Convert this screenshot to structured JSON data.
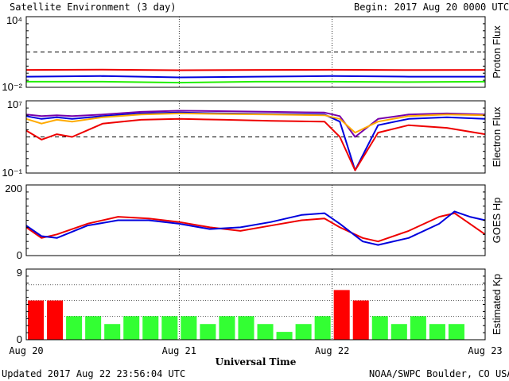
{
  "header": {
    "title": "Satellite Environment (3 day)",
    "begin": "Begin:  2017 Aug 20 0000 UTC"
  },
  "footer": {
    "updated": "Updated 2017 Aug 22 23:56:04 UTC",
    "credit": "NOAA/SWPC Boulder, CO USA"
  },
  "colors": {
    "red": "#ee0000",
    "blue": "#0000dd",
    "green": "#22ee00",
    "orange": "#ffaa00",
    "purple": "#7700aa",
    "kp_red": "#ff0000",
    "kp_green": "#33ff33"
  },
  "chart_data": [
    {
      "type": "line",
      "ylabel": "Proton Flux",
      "yscale": "log",
      "y_tick_labels": [
        "10⁴",
        "10⁻²"
      ],
      "ylim": [
        0.01,
        10000
      ],
      "threshold": 10,
      "x_days": [
        0,
        0.5,
        1,
        1.5,
        2,
        2.5,
        3
      ],
      "series": [
        {
          "color": "red",
          "values": [
            0.3,
            0.32,
            0.28,
            0.3,
            0.31,
            0.29,
            0.3
          ]
        },
        {
          "color": "blue",
          "values": [
            0.08,
            0.09,
            0.07,
            0.08,
            0.09,
            0.08,
            0.08
          ]
        },
        {
          "color": "green",
          "values": [
            0.03,
            0.03,
            0.025,
            0.03,
            0.03,
            0.028,
            0.03
          ]
        }
      ]
    },
    {
      "type": "line",
      "ylabel": "Electron Flux",
      "yscale": "log",
      "y_tick_labels": [
        "10⁷",
        "10⁻¹"
      ],
      "ylim": [
        0.1,
        10000000
      ],
      "threshold": 1000,
      "x_days": [
        0,
        0.1,
        0.2,
        0.3,
        0.5,
        0.75,
        1.0,
        1.3,
        1.6,
        1.95,
        2.05,
        2.15,
        2.3,
        2.5,
        2.75,
        3.0
      ],
      "series": [
        {
          "color": "purple",
          "values": [
            300000,
            200000,
            250000,
            200000,
            300000,
            600000,
            800000,
            700000,
            600000,
            500000,
            200000,
            1000,
            100000,
            300000,
            400000,
            300000
          ]
        },
        {
          "color": "blue",
          "values": [
            200000,
            100000,
            150000,
            100000,
            200000,
            400000,
            500000,
            400000,
            350000,
            300000,
            50000,
            0.2,
            20000,
            100000,
            150000,
            100000
          ]
        },
        {
          "color": "orange",
          "values": [
            100000,
            30000,
            80000,
            50000,
            150000,
            300000,
            400000,
            350000,
            300000,
            250000,
            100000,
            3000,
            50000,
            200000,
            300000,
            250000
          ]
        },
        {
          "color": "red",
          "values": [
            5000,
            500,
            2000,
            1000,
            30000,
            80000,
            100000,
            80000,
            60000,
            50000,
            1000,
            0.2,
            3000,
            20000,
            10000,
            2000
          ]
        }
      ]
    },
    {
      "type": "line",
      "ylabel": "GOES Hp",
      "y_tick_labels": [
        "200",
        "0"
      ],
      "ylim": [
        0,
        200
      ],
      "x_days": [
        0,
        0.1,
        0.2,
        0.4,
        0.6,
        0.8,
        1.0,
        1.2,
        1.4,
        1.6,
        1.8,
        1.95,
        2.05,
        2.2,
        2.3,
        2.5,
        2.7,
        2.8,
        2.9,
        3.0
      ],
      "series": [
        {
          "color": "red",
          "values": [
            80,
            50,
            60,
            90,
            110,
            105,
            95,
            80,
            70,
            85,
            100,
            105,
            80,
            50,
            40,
            70,
            110,
            120,
            90,
            60
          ]
        },
        {
          "color": "blue",
          "values": [
            85,
            55,
            50,
            85,
            100,
            100,
            90,
            75,
            80,
            95,
            115,
            120,
            90,
            40,
            30,
            50,
            90,
            125,
            110,
            100
          ]
        }
      ]
    },
    {
      "type": "bar",
      "ylabel": "Estimated Kp",
      "y_tick_labels": [
        "9",
        "0"
      ],
      "ylim": [
        0,
        9
      ],
      "values": [
        5,
        5,
        3,
        3,
        2,
        3,
        3,
        3,
        3,
        2,
        3,
        3,
        2,
        1,
        2,
        3,
        6.33,
        5,
        3,
        2,
        3,
        2,
        2
      ],
      "colors": [
        "red",
        "red",
        "green",
        "green",
        "green",
        "green",
        "green",
        "green",
        "green",
        "green",
        "green",
        "green",
        "green",
        "green",
        "green",
        "green",
        "red",
        "red",
        "green",
        "green",
        "green",
        "green",
        "green"
      ]
    }
  ],
  "x_axis": {
    "tick_labels": [
      "Aug 20",
      "Aug 21",
      "Aug 22",
      "Aug 23"
    ],
    "label": "Universal Time"
  }
}
